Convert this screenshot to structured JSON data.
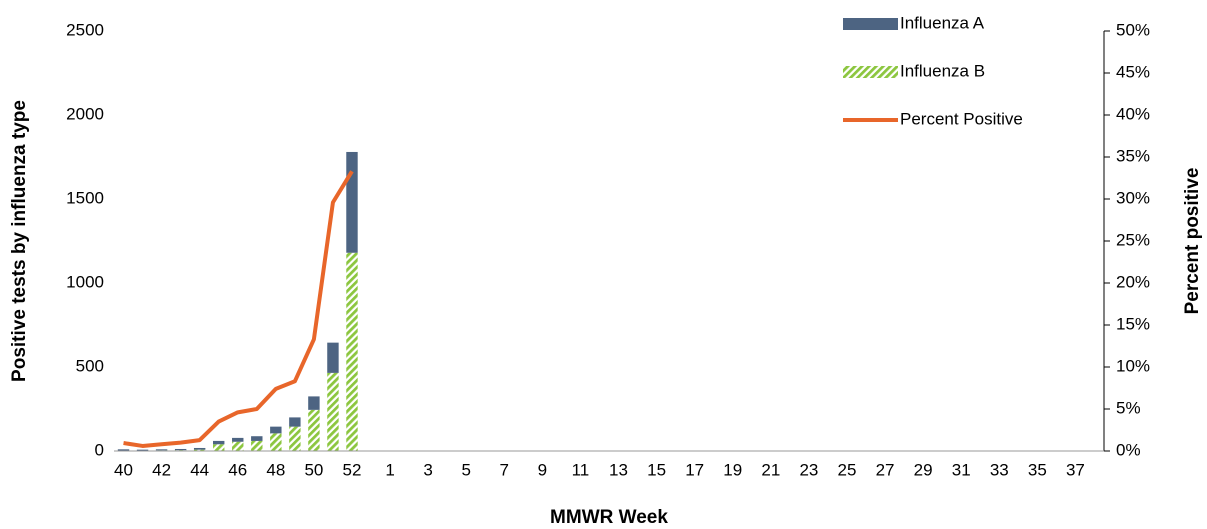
{
  "chart_data": {
    "type": "bar",
    "xlabel": "MMWR Week",
    "ylabel": "Positive tests by influenza type",
    "y2label": "Percent positive",
    "stacked": true,
    "legend": "top-right",
    "categories": [
      "40",
      null,
      "42",
      null,
      "44",
      null,
      "46",
      null,
      "48",
      null,
      "50",
      null,
      "52",
      null,
      "1",
      null,
      "3",
      null,
      "5",
      null,
      "7",
      null,
      "9",
      null,
      "11",
      null,
      "13",
      null,
      "15",
      null,
      "17",
      null,
      "19",
      null,
      "21",
      null,
      "23",
      null,
      "25",
      null,
      "27",
      null,
      "29",
      null,
      "31",
      null,
      "33",
      null,
      "35",
      null,
      "37",
      null
    ],
    "series": [
      {
        "name": "Influenza A",
        "type": "bar",
        "color": "#4d6482",
        "values": [
          7,
          5,
          6,
          7,
          10,
          20,
          23,
          28,
          40,
          55,
          80,
          180,
          600,
          null,
          null,
          null,
          null,
          null,
          null,
          null,
          null,
          null,
          null,
          null,
          null,
          null,
          null,
          null,
          null,
          null,
          null,
          null,
          null,
          null,
          null,
          null,
          null,
          null,
          null,
          null,
          null,
          null,
          null,
          null,
          null,
          null,
          null,
          null,
          null,
          null,
          null,
          null
        ]
      },
      {
        "name": "Influenza B",
        "type": "bar",
        "color": "#8cc63f",
        "pattern": "hatch",
        "values": [
          3,
          3,
          4,
          5,
          8,
          40,
          55,
          60,
          105,
          145,
          245,
          465,
          1180,
          null,
          null,
          null,
          null,
          null,
          null,
          null,
          null,
          null,
          null,
          null,
          null,
          null,
          null,
          null,
          null,
          null,
          null,
          null,
          null,
          null,
          null,
          null,
          null,
          null,
          null,
          null,
          null,
          null,
          null,
          null,
          null,
          null,
          null,
          null,
          null,
          null,
          null,
          null
        ]
      },
      {
        "name": "Percent Positive",
        "type": "line",
        "axis": "y2",
        "color": "#e8662a",
        "values": [
          0.95,
          0.6,
          0.8,
          1.0,
          1.3,
          3.5,
          4.6,
          5.0,
          7.4,
          8.3,
          13.3,
          29.6,
          33.3,
          null,
          null,
          null,
          null,
          null,
          null,
          null,
          null,
          null,
          null,
          null,
          null,
          null,
          null,
          null,
          null,
          null,
          null,
          null,
          null,
          null,
          null,
          null,
          null,
          null,
          null,
          null,
          null,
          null,
          null,
          null,
          null,
          null,
          null,
          null,
          null,
          null,
          null,
          null
        ]
      }
    ],
    "ylim": [
      0,
      2500
    ],
    "yticks": [
      0,
      500,
      1000,
      1500,
      2000,
      2500
    ],
    "y2lim": [
      0,
      50
    ],
    "y2ticks": [
      {
        "value": 0,
        "label": "0%"
      },
      {
        "value": 5,
        "label": "5%"
      },
      {
        "value": 10,
        "label": "10%"
      },
      {
        "value": 15,
        "label": "15%"
      },
      {
        "value": 20,
        "label": "20%"
      },
      {
        "value": 25,
        "label": "25%"
      },
      {
        "value": 30,
        "label": "30%"
      },
      {
        "value": 35,
        "label": "35%"
      },
      {
        "value": 40,
        "label": "40%"
      },
      {
        "value": 45,
        "label": "45%"
      },
      {
        "value": 50,
        "label": "50%"
      }
    ],
    "grid": false
  }
}
